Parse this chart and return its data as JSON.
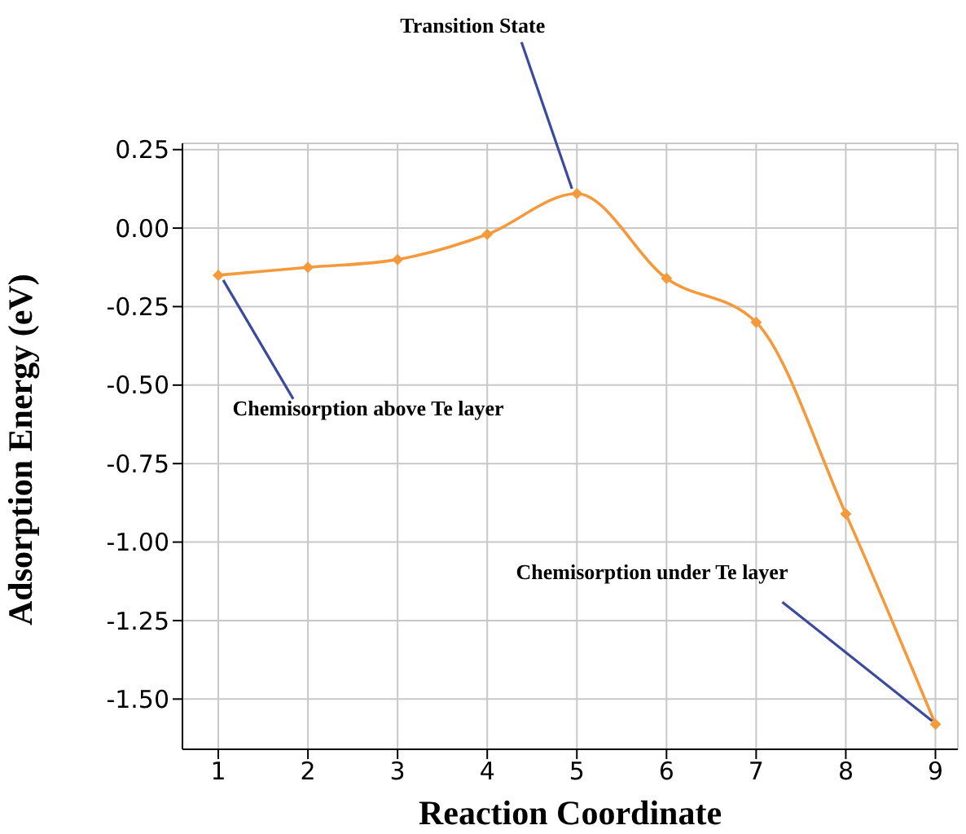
{
  "chart_data": {
    "type": "line",
    "xlabel": "Reaction Coordinate",
    "ylabel": "Adsorption Energy (eV)",
    "x": [
      1,
      2,
      3,
      4,
      5,
      6,
      7,
      8,
      9
    ],
    "series": [
      {
        "color": "#f59a3c",
        "values": [
          -0.15,
          -0.125,
          -0.1,
          -0.02,
          0.11,
          -0.16,
          -0.3,
          -0.91,
          -1.58
        ]
      }
    ],
    "xlim": [
      0.6,
      9.25
    ],
    "xticks": [
      1,
      2,
      3,
      4,
      5,
      6,
      7,
      8,
      9
    ],
    "ylim": [
      -1.66,
      0.27
    ],
    "yticks": [
      {
        "value": -1.5,
        "label": "-1.50"
      },
      -1.25,
      {
        "value": -1,
        "label": "-1.00"
      },
      -0.75,
      {
        "value": -0.5,
        "label": "-0.50"
      },
      -0.25,
      {
        "value": 0,
        "label": "0.00"
      },
      0.25
    ],
    "grid": true,
    "marker": "diamond",
    "line_style": "solid",
    "annotations": [
      {
        "text": "Transition State",
        "x": 5,
        "y": 0.11
      },
      {
        "text": "Chemisorption above Te layer",
        "x": 1,
        "y": -0.15
      },
      {
        "text": "Chemisorption under Te layer",
        "x": 9,
        "y": -1.58
      }
    ]
  }
}
